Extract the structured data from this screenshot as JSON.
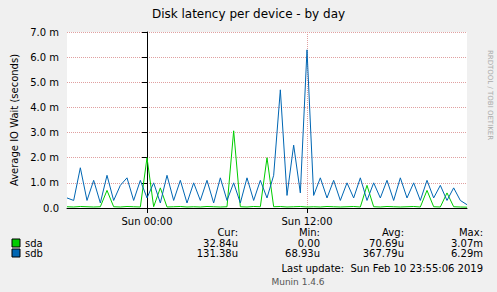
{
  "chart_data": {
    "type": "line",
    "title": "Disk latency per device - by day",
    "y_label": "Average IO Wait (seconds)",
    "x": [
      -6,
      -5.5,
      -5,
      -4.5,
      -4,
      -3.5,
      -3,
      -2.5,
      -2,
      -1.5,
      -1,
      -0.5,
      0,
      0.5,
      1,
      1.5,
      2,
      2.5,
      3,
      3.5,
      4,
      4.5,
      5,
      5.5,
      6,
      6.5,
      7,
      7.5,
      8,
      8.5,
      9,
      9.5,
      10,
      10.5,
      11,
      11.5,
      12,
      12.5,
      13,
      13.5,
      14,
      14.5,
      15,
      15.5,
      16,
      16.5,
      17,
      17.5,
      18,
      18.5,
      19,
      19.5,
      20,
      20.5,
      21,
      21.5,
      22,
      22.5,
      23,
      23.5,
      24
    ],
    "xlim": [
      -6,
      24
    ],
    "xticks": [
      {
        "value": 0,
        "label": "Sun 00:00"
      },
      {
        "value": 12,
        "label": "Sun 12:00"
      }
    ],
    "ylim": [
      0,
      0.007
    ],
    "yticks": [
      {
        "value": 0,
        "label": "0.0"
      },
      {
        "value": 0.001,
        "label": "1.0 m"
      },
      {
        "value": 0.002,
        "label": "2.0 m"
      },
      {
        "value": 0.003,
        "label": "3.0 m"
      },
      {
        "value": 0.004,
        "label": "4.0 m"
      },
      {
        "value": 0.005,
        "label": "5.0 m"
      },
      {
        "value": 0.006,
        "label": "6.0 m"
      },
      {
        "value": 0.007,
        "label": "7.0 m"
      }
    ],
    "grid": true,
    "stats_header": [
      "Cur:",
      "Min:",
      "Avg:",
      "Max:"
    ],
    "series": [
      {
        "name": "sda",
        "color": "#00cc00",
        "stats": [
          "32.84u",
          "0.00",
          "70.69u",
          "3.07m"
        ],
        "values": [
          5e-05,
          4e-05,
          6e-05,
          5e-05,
          4e-05,
          5e-05,
          0.0007,
          5e-05,
          4e-05,
          6e-05,
          5e-05,
          4e-05,
          0.002,
          5e-05,
          0.0008,
          4e-05,
          5e-05,
          6e-05,
          4e-05,
          5e-05,
          4e-05,
          6e-05,
          5e-05,
          4e-05,
          5e-05,
          0.00307,
          5e-05,
          4e-05,
          6e-05,
          5e-05,
          0.002,
          5e-05,
          6e-05,
          4e-05,
          5e-05,
          6e-05,
          4e-05,
          5e-05,
          4e-05,
          6e-05,
          5e-05,
          4e-05,
          5e-05,
          6e-05,
          4e-05,
          0.0009,
          5e-05,
          4e-05,
          6e-05,
          5e-05,
          4e-05,
          5e-05,
          6e-05,
          4e-05,
          0.0007,
          5e-05,
          4e-05,
          0.0006,
          5e-05,
          4e-05,
          3.284e-05
        ]
      },
      {
        "name": "sdb",
        "color": "#0066b3",
        "stats": [
          "131.38u",
          "68.93u",
          "367.79u",
          "6.29m"
        ],
        "values": [
          0.0004,
          0.0003,
          0.0016,
          0.0003,
          0.0011,
          0.0002,
          0.0013,
          0.0003,
          0.0009,
          0.0012,
          0.0003,
          0.0011,
          0.0004,
          0.001,
          0.0002,
          0.0013,
          0.0003,
          0.0011,
          0.0002,
          0.001,
          0.0003,
          0.0011,
          0.0002,
          0.0012,
          0.0003,
          0.001,
          0.0002,
          0.0012,
          0.0003,
          0.0011,
          0.0004,
          0.0013,
          0.0047,
          0.0005,
          0.0025,
          0.0006,
          0.00629,
          0.0005,
          0.0012,
          0.0004,
          0.0011,
          0.0003,
          0.001,
          0.0004,
          0.0012,
          0.0003,
          0.001,
          0.0004,
          0.0011,
          0.0003,
          0.0012,
          0.0004,
          0.001,
          0.0003,
          0.0011,
          0.0004,
          0.0009,
          0.0003,
          0.0008,
          0.0003,
          0.00013138
        ]
      }
    ],
    "last_update": "Last update:  Sun Feb 10 23:55:06 2019",
    "version": "Munin 1.4.6",
    "watermark": "RRDTOOL / TOBI OETIKER"
  }
}
